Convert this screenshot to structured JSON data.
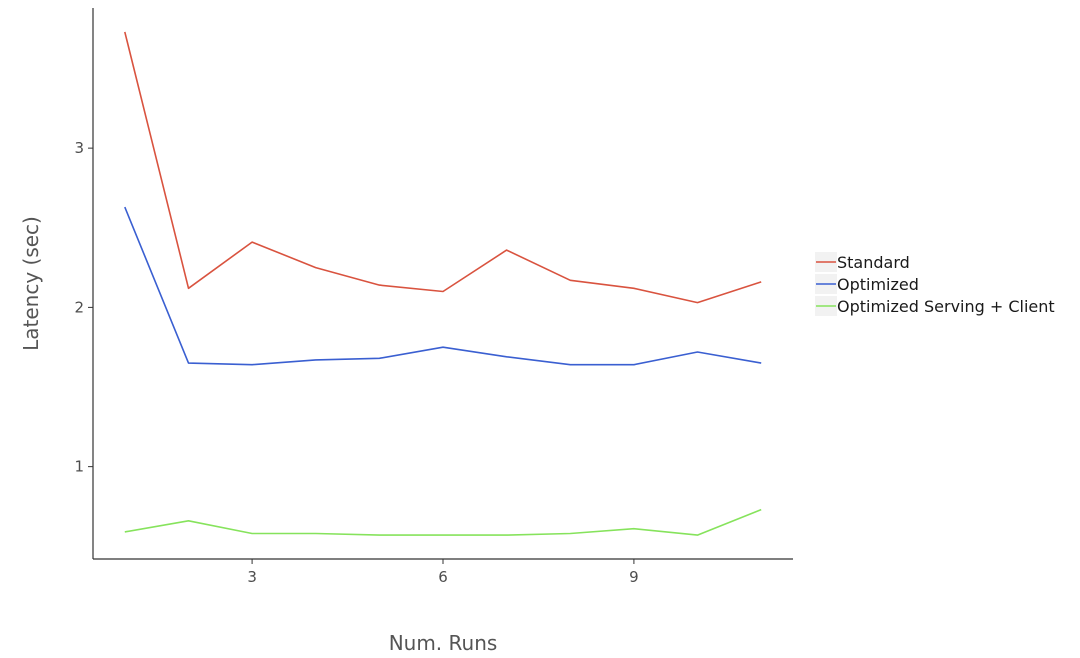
{
  "chart_data": {
    "type": "line",
    "xlabel": "Num. Runs",
    "ylabel": "Latency (sec)",
    "xlim": [
      0.5,
      11.5
    ],
    "ylim": [
      0.42,
      3.88
    ],
    "xticks": [
      3,
      6,
      9
    ],
    "yticks": [
      1,
      2,
      3
    ],
    "grid": false,
    "legend_position": "right",
    "x": [
      1,
      2,
      3,
      4,
      5,
      6,
      7,
      8,
      9,
      10,
      11
    ],
    "series": [
      {
        "name": "Standard",
        "color": "#d9533f",
        "values": [
          3.73,
          2.12,
          2.41,
          2.25,
          2.14,
          2.1,
          2.36,
          2.17,
          2.12,
          2.03,
          2.16
        ]
      },
      {
        "name": "Optimized",
        "color": "#3a5fd1",
        "values": [
          2.63,
          1.65,
          1.64,
          1.67,
          1.68,
          1.75,
          1.69,
          1.64,
          1.64,
          1.72,
          1.65
        ]
      },
      {
        "name": "Optimized Serving + Client",
        "color": "#86e35c",
        "values": [
          0.59,
          0.66,
          0.58,
          0.58,
          0.57,
          0.57,
          0.57,
          0.58,
          0.61,
          0.57,
          0.73
        ]
      }
    ]
  }
}
